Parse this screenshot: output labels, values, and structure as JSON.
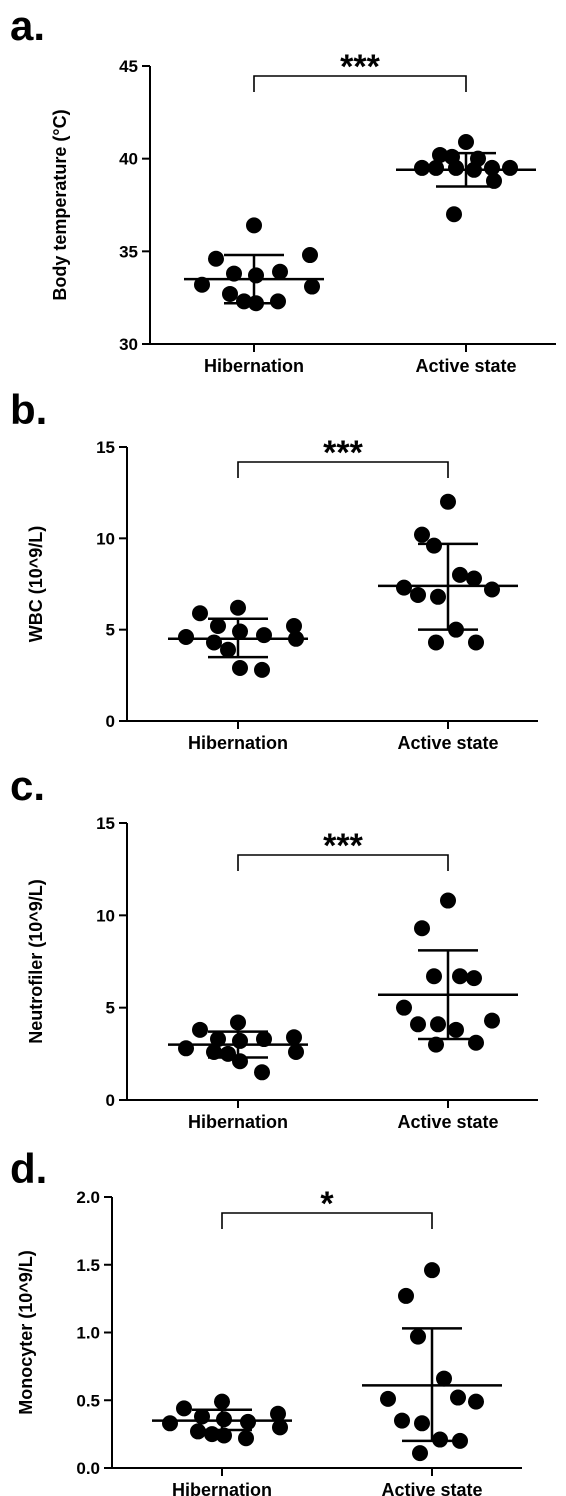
{
  "chart_data": [
    {
      "panel": "a.",
      "type": "scatter",
      "categories": [
        "Hibernation",
        "Active state"
      ],
      "ylabel": "Body temperature (°C)",
      "ylim": [
        30,
        45
      ],
      "yticks": [
        30,
        35,
        40,
        45
      ],
      "significance": "***",
      "series": [
        {
          "values": [
            36.4,
            34.6,
            34.8,
            33.8,
            33.7,
            33.9,
            33.2,
            33.1,
            32.7,
            32.3,
            32.2,
            32.3
          ],
          "mean": 33.5,
          "sd_upper": 34.8,
          "sd_lower": 32.2
        },
        {
          "values": [
            40.9,
            40.2,
            40.1,
            40.0,
            39.5,
            39.5,
            39.5,
            39.5,
            39.5,
            39.4,
            38.8,
            37.0
          ],
          "mean": 39.4,
          "sd_upper": 40.3,
          "sd_lower": 38.5
        }
      ]
    },
    {
      "panel": "b.",
      "type": "scatter",
      "categories": [
        "Hibernation",
        "Active state"
      ],
      "ylabel": "WBC (10^9/L)",
      "ylim": [
        0,
        15
      ],
      "yticks": [
        0,
        5,
        10,
        15
      ],
      "significance": "***",
      "series": [
        {
          "values": [
            6.2,
            5.9,
            5.2,
            5.2,
            4.9,
            4.7,
            4.6,
            4.5,
            4.3,
            3.9,
            2.9,
            2.8
          ],
          "mean": 4.5,
          "sd_upper": 5.6,
          "sd_lower": 3.5
        },
        {
          "values": [
            12.0,
            10.2,
            9.6,
            8.0,
            7.8,
            7.3,
            7.2,
            6.9,
            6.8,
            5.0,
            4.3,
            4.3
          ],
          "mean": 7.4,
          "sd_upper": 9.7,
          "sd_lower": 5.0
        }
      ]
    },
    {
      "panel": "c.",
      "type": "scatter",
      "categories": [
        "Hibernation",
        "Active state"
      ],
      "ylabel": "Neutrofiler (10^9/L)",
      "ylim": [
        0,
        15
      ],
      "yticks": [
        0,
        5,
        10,
        15
      ],
      "significance": "***",
      "series": [
        {
          "values": [
            4.2,
            3.8,
            3.4,
            3.3,
            3.2,
            3.3,
            2.8,
            2.6,
            2.6,
            2.5,
            2.1,
            1.5
          ],
          "mean": 3.0,
          "sd_upper": 3.7,
          "sd_lower": 2.3
        },
        {
          "values": [
            10.8,
            9.3,
            6.7,
            6.7,
            6.6,
            5.0,
            4.3,
            4.1,
            4.1,
            3.8,
            3.1,
            3.0
          ],
          "mean": 5.7,
          "sd_upper": 8.1,
          "sd_lower": 3.3
        }
      ]
    },
    {
      "panel": "d.",
      "type": "scatter",
      "categories": [
        "Hibernation",
        "Active state"
      ],
      "ylabel": "Monocyter (10^9/L)",
      "ylim": [
        0,
        2
      ],
      "yticks": [
        "0.0",
        "0.5",
        "1.0",
        "1.5",
        "2.0"
      ],
      "significance": "*",
      "series": [
        {
          "values": [
            0.49,
            0.44,
            0.4,
            0.38,
            0.36,
            0.34,
            0.33,
            0.3,
            0.27,
            0.25,
            0.24,
            0.22
          ],
          "mean": 0.35,
          "sd_upper": 0.43,
          "sd_lower": 0.28
        },
        {
          "values": [
            1.46,
            1.27,
            0.97,
            0.66,
            0.52,
            0.51,
            0.49,
            0.35,
            0.33,
            0.21,
            0.2,
            0.11
          ],
          "mean": 0.61,
          "sd_upper": 1.03,
          "sd_lower": 0.2
        }
      ]
    }
  ]
}
